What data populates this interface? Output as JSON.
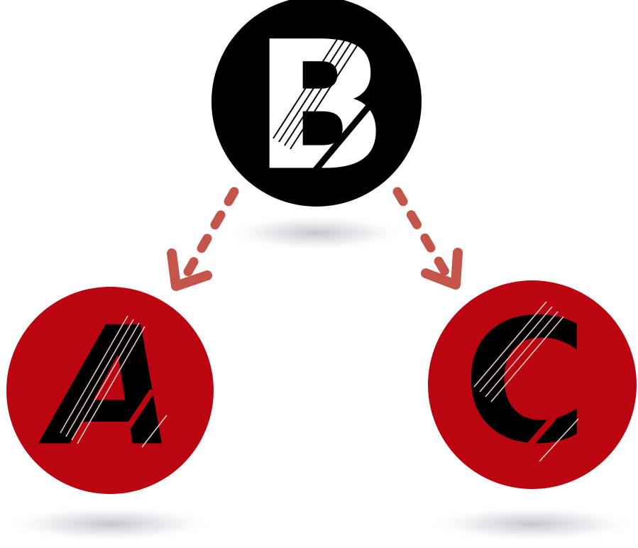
{
  "nodes": {
    "top": {
      "label": "B",
      "fill": "#000000",
      "text_color": "#ffffff"
    },
    "left": {
      "label": "A",
      "fill": "#bb0612",
      "text_color": "#000000"
    },
    "right": {
      "label": "C",
      "fill": "#bb0612",
      "text_color": "#000000"
    }
  },
  "arrows": {
    "color": "#c4554a",
    "style": "dashed",
    "edges": [
      {
        "from": "B",
        "to": "A"
      },
      {
        "from": "B",
        "to": "C"
      }
    ]
  },
  "colors": {
    "background": "#ffffff",
    "shadow": "#b9bcc4"
  }
}
